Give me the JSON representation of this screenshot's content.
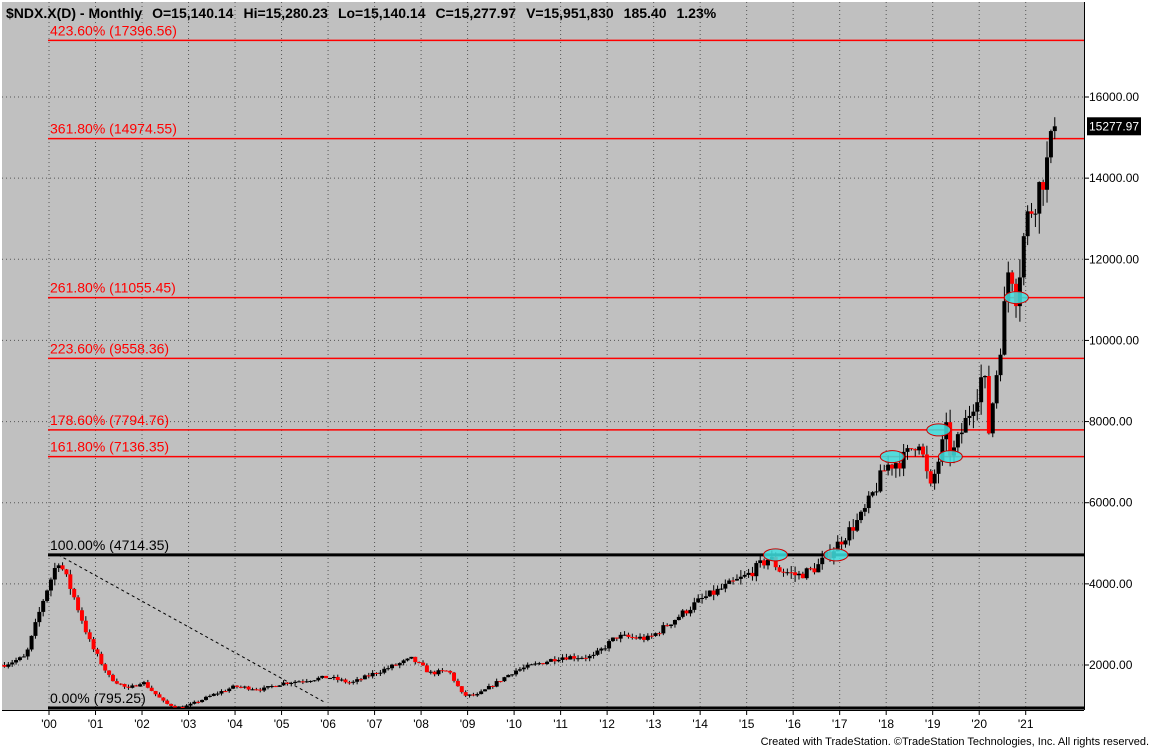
{
  "header": {
    "symbol": "$NDX.X(D) - Monthly",
    "open": "O=15,140.14",
    "high": "Hi=15,280.23",
    "low": "Lo=15,140.14",
    "close": "C=15,277.97",
    "volume": "V=15,951,830",
    "change": "185.40",
    "change_pct": "1.23%"
  },
  "footer": {
    "credit": "Created with TradeStation. ©TradeStation Technologies, Inc. All rights reserved."
  },
  "colors": {
    "plot_bg": "#c0c0c0",
    "fib_red": "#ff0000",
    "base_black": "#000000",
    "bull_candle": "#000000",
    "bear_candle": "#ff0000",
    "highlight_fill": "#40e0e0"
  },
  "last_price_label": "15277.97",
  "chart_data": {
    "type": "candlestick",
    "title": "$NDX.X(D) - Monthly",
    "x_range": [
      1999.0,
      2021.92
    ],
    "y_range": [
      1100,
      18300
    ],
    "y_scale": "linear",
    "y_ticks": [
      {
        "value": 2000,
        "label": "2000.00"
      },
      {
        "value": 4000,
        "label": "4000.00"
      },
      {
        "value": 6000,
        "label": "6000.00"
      },
      {
        "value": 8000,
        "label": "8000.00"
      },
      {
        "value": 10000,
        "label": "10000.00"
      },
      {
        "value": 12000,
        "label": "12000.00"
      },
      {
        "value": 14000,
        "label": "14000.00"
      },
      {
        "value": 16000,
        "label": "16000.00"
      }
    ],
    "x_ticks": [
      {
        "value": 2000,
        "label": "'00"
      },
      {
        "value": 2001,
        "label": "'01"
      },
      {
        "value": 2002,
        "label": "'02"
      },
      {
        "value": 2003,
        "label": "'03"
      },
      {
        "value": 2004,
        "label": "'04"
      },
      {
        "value": 2005,
        "label": "'05"
      },
      {
        "value": 2006,
        "label": "'06"
      },
      {
        "value": 2007,
        "label": "'07"
      },
      {
        "value": 2008,
        "label": "'08"
      },
      {
        "value": 2009,
        "label": "'09"
      },
      {
        "value": 2010,
        "label": "'10"
      },
      {
        "value": 2011,
        "label": "'11"
      },
      {
        "value": 2012,
        "label": "'12"
      },
      {
        "value": 2013,
        "label": "'13"
      },
      {
        "value": 2014,
        "label": "'14"
      },
      {
        "value": 2015,
        "label": "'15"
      },
      {
        "value": 2016,
        "label": "'16"
      },
      {
        "value": 2017,
        "label": "'17"
      },
      {
        "value": 2018,
        "label": "'18"
      },
      {
        "value": 2019,
        "label": "'19"
      },
      {
        "value": 2020,
        "label": "'20"
      },
      {
        "value": 2021,
        "label": "'21"
      }
    ],
    "fib_levels": [
      {
        "value": 17396.56,
        "label": "423.60% (17396.56)",
        "color": "#ff0000"
      },
      {
        "value": 14974.55,
        "label": "361.80% (14974.55)",
        "color": "#ff0000"
      },
      {
        "value": 11055.45,
        "label": "261.80% (11055.45)",
        "color": "#ff0000"
      },
      {
        "value": 9558.36,
        "label": "223.60% (9558.36)",
        "color": "#ff0000"
      },
      {
        "value": 7794.76,
        "label": "178.60% (7794.76)",
        "color": "#ff0000"
      },
      {
        "value": 7136.35,
        "label": "161.80% (7136.35)",
        "color": "#ff0000"
      },
      {
        "value": 4714.35,
        "label": "100.00% (4714.35)",
        "color": "#000000"
      },
      {
        "value": 795.25,
        "label": "0.00% (795.25)",
        "color": "#000000"
      }
    ],
    "retracement_line": {
      "from": {
        "x": 2000.2,
        "y": 4714.35
      },
      "to": {
        "x": 2005.9,
        "y": 1100
      }
    },
    "highlights": [
      {
        "x": 2015.62,
        "y": 4714.35
      },
      {
        "x": 2016.92,
        "y": 4714.35
      },
      {
        "x": 2018.13,
        "y": 7136.35
      },
      {
        "x": 2019.13,
        "y": 7794.76
      },
      {
        "x": 2019.38,
        "y": 7136.35
      },
      {
        "x": 2020.8,
        "y": 11055.45
      }
    ],
    "anchors": [
      {
        "t": 1999.0,
        "p": 2000
      },
      {
        "t": 1999.5,
        "p": 2200
      },
      {
        "t": 1999.9,
        "p": 3700
      },
      {
        "t": 2000.2,
        "p": 4600
      },
      {
        "t": 2000.5,
        "p": 3800
      },
      {
        "t": 2000.9,
        "p": 2500
      },
      {
        "t": 2001.3,
        "p": 1700
      },
      {
        "t": 2001.7,
        "p": 1400
      },
      {
        "t": 2002.0,
        "p": 1600
      },
      {
        "t": 2002.5,
        "p": 1050
      },
      {
        "t": 2002.8,
        "p": 950
      },
      {
        "t": 2003.0,
        "p": 1000
      },
      {
        "t": 2003.6,
        "p": 1300
      },
      {
        "t": 2004.0,
        "p": 1470
      },
      {
        "t": 2004.6,
        "p": 1400
      },
      {
        "t": 2005.0,
        "p": 1550
      },
      {
        "t": 2006.0,
        "p": 1700
      },
      {
        "t": 2006.5,
        "p": 1550
      },
      {
        "t": 2007.0,
        "p": 1800
      },
      {
        "t": 2007.8,
        "p": 2150
      },
      {
        "t": 2008.2,
        "p": 1800
      },
      {
        "t": 2008.6,
        "p": 1850
      },
      {
        "t": 2008.9,
        "p": 1250
      },
      {
        "t": 2009.2,
        "p": 1250
      },
      {
        "t": 2010.0,
        "p": 1850
      },
      {
        "t": 2011.0,
        "p": 2200
      },
      {
        "t": 2011.7,
        "p": 2200
      },
      {
        "t": 2012.2,
        "p": 2700
      },
      {
        "t": 2012.9,
        "p": 2650
      },
      {
        "t": 2014.0,
        "p": 3600
      },
      {
        "t": 2015.0,
        "p": 4200
      },
      {
        "t": 2015.5,
        "p": 4650
      },
      {
        "t": 2015.7,
        "p": 4350
      },
      {
        "t": 2016.1,
        "p": 4200
      },
      {
        "t": 2016.5,
        "p": 4400
      },
      {
        "t": 2016.9,
        "p": 4900
      },
      {
        "t": 2017.5,
        "p": 5700
      },
      {
        "t": 2018.0,
        "p": 6900
      },
      {
        "t": 2018.4,
        "p": 7100
      },
      {
        "t": 2018.7,
        "p": 7600
      },
      {
        "t": 2018.95,
        "p": 6300
      },
      {
        "t": 2019.3,
        "p": 7800
      },
      {
        "t": 2019.4,
        "p": 7100
      },
      {
        "t": 2019.95,
        "p": 8700
      },
      {
        "t": 2020.1,
        "p": 9300
      },
      {
        "t": 2020.2,
        "p": 7700
      },
      {
        "t": 2020.5,
        "p": 10300
      },
      {
        "t": 2020.65,
        "p": 12000
      },
      {
        "t": 2020.8,
        "p": 11100
      },
      {
        "t": 2021.0,
        "p": 12900
      },
      {
        "t": 2021.3,
        "p": 13800
      },
      {
        "t": 2021.5,
        "p": 14500
      },
      {
        "t": 2021.62,
        "p": 15278
      }
    ]
  }
}
